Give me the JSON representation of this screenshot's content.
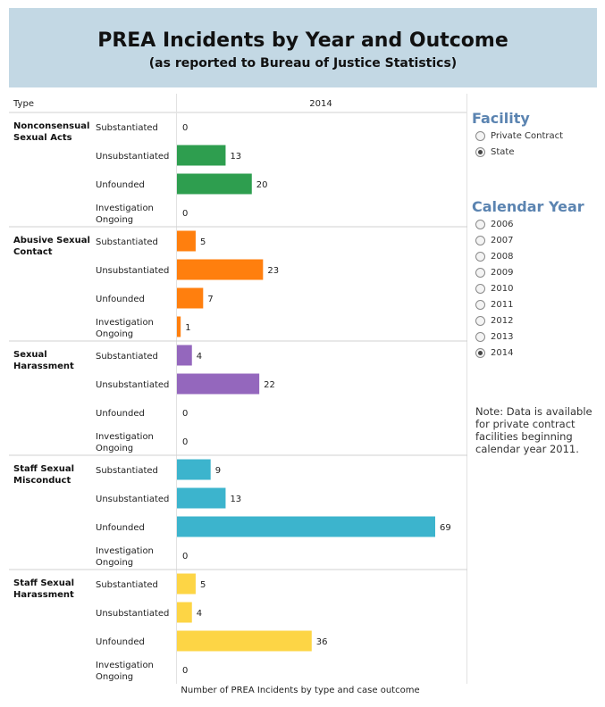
{
  "header": {
    "title": "PREA Incidents by Year and Outcome",
    "subtitle": "(as reported to Bureau of Justice Statistics)"
  },
  "filters": {
    "facility": {
      "title": "Facility",
      "options": [
        "Private Contract",
        "State"
      ],
      "selected": "State"
    },
    "calendar_year": {
      "title": "Calendar Year",
      "options": [
        "2006",
        "2007",
        "2008",
        "2009",
        "2010",
        "2011",
        "2012",
        "2013",
        "2014"
      ],
      "selected": "2014"
    }
  },
  "note": "Note: Data is available for private contract facilities beginning calendar year 2011.",
  "chart_data": {
    "type": "bar",
    "orientation": "horizontal",
    "type_column_header": "Type",
    "column_header": "2014",
    "caption": "Number of PREA Incidents by type and case outcome",
    "outcomes": [
      "Substantiated",
      "Unsubstantiated",
      "Unfounded",
      "Investigation Ongoing"
    ],
    "groups": [
      {
        "name": "Nonconsensual Sexual Acts",
        "color": "#2e9e4f",
        "values": [
          0,
          13,
          20,
          0
        ]
      },
      {
        "name": "Abusive Sexual Contact",
        "color": "#ff7f0e",
        "values": [
          5,
          23,
          7,
          1
        ]
      },
      {
        "name": "Sexual Harassment",
        "color": "#9467bd",
        "values": [
          4,
          22,
          0,
          0
        ]
      },
      {
        "name": "Staff Sexual Misconduct",
        "color": "#3cb4cd",
        "values": [
          9,
          13,
          69,
          0
        ]
      },
      {
        "name": "Staff Sexual Harassment",
        "color": "#fdd545",
        "values": [
          5,
          4,
          36,
          0
        ]
      }
    ]
  }
}
